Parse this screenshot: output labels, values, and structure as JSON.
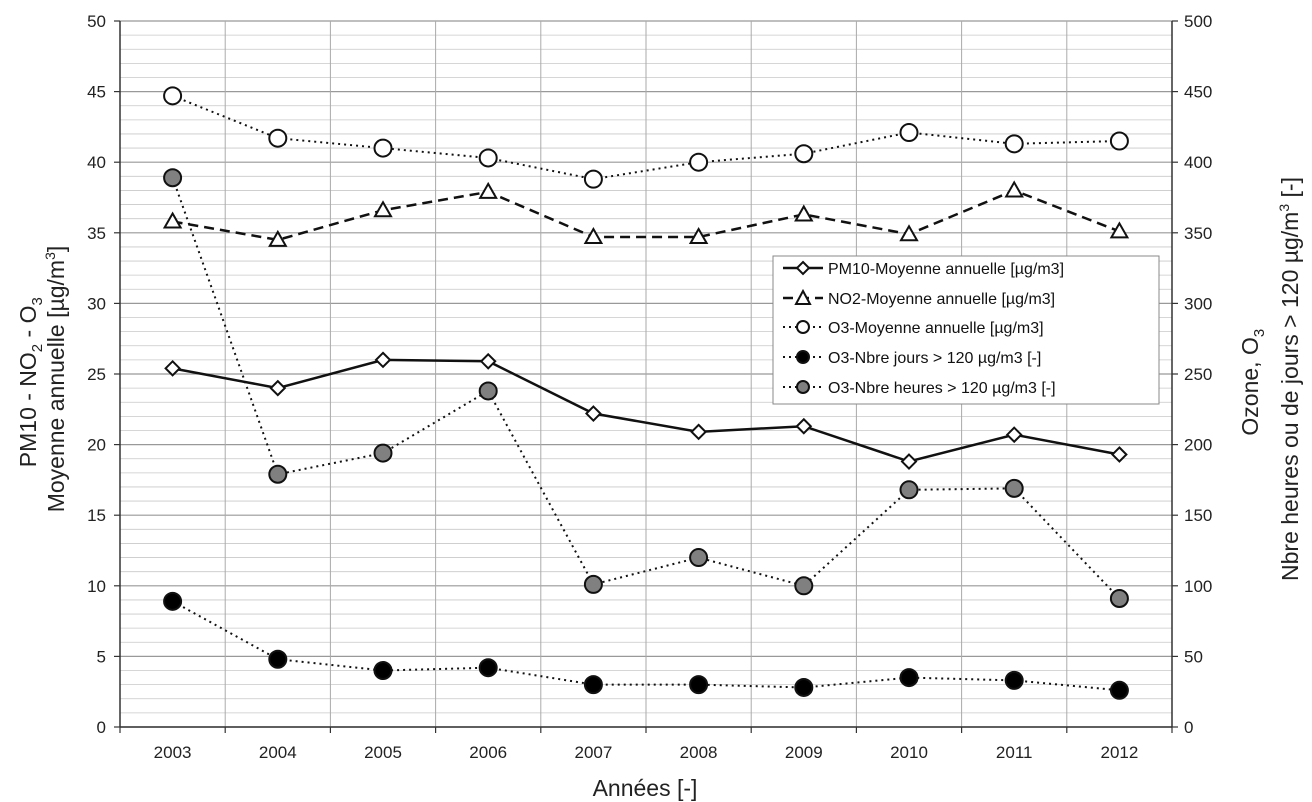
{
  "chart_data": {
    "type": "line",
    "x": [
      "2003",
      "2004",
      "2005",
      "2006",
      "2007",
      "2008",
      "2009",
      "2010",
      "2011",
      "2012"
    ],
    "xlabel": "Années [-]",
    "ylabel_left": {
      "line1_prefix": "PM10 - NO",
      "line1_sub1": "2",
      "line1_mid": " - O",
      "line1_sub2": "3",
      "line2_prefix": "Moyenne annuelle [µg/m",
      "line2_sup": "3",
      "line2_suffix": "]"
    },
    "ylabel_right": {
      "line1_prefix": "Ozone, O",
      "line1_sub": "3",
      "line2_prefix": "Nbre heures ou de jours > 120 µg/m",
      "line2_sup": "3",
      "line2_suffix": " [-]"
    },
    "ylim_left": [
      0,
      50
    ],
    "ylim_right": [
      0,
      500
    ],
    "yticks_left": [
      "0",
      "5",
      "10",
      "15",
      "20",
      "25",
      "30",
      "35",
      "40",
      "45",
      "50"
    ],
    "yticks_right": [
      "0",
      "50",
      "100",
      "150",
      "200",
      "250",
      "300",
      "350",
      "400",
      "450",
      "500"
    ],
    "grid": true,
    "legend_position": "right-center",
    "series": [
      {
        "name": "PM10-Moyenne annuelle [µg/m3]",
        "axis": "left",
        "marker": "diamond",
        "line_style": "solid",
        "marker_fill": "#ffffff",
        "values": [
          25.4,
          24.0,
          26.0,
          25.9,
          22.2,
          20.9,
          21.3,
          18.8,
          20.7,
          19.3
        ]
      },
      {
        "name": "NO2-Moyenne annuelle [µg/m3]",
        "axis": "left",
        "marker": "triangle",
        "line_style": "dashed",
        "marker_fill": "#ffffff",
        "values": [
          35.8,
          34.5,
          36.6,
          37.9,
          34.7,
          34.7,
          36.3,
          34.9,
          38.0,
          35.1
        ]
      },
      {
        "name": "O3-Moyenne annuelle [µg/m3]",
        "axis": "left",
        "marker": "circle",
        "line_style": "dotted",
        "marker_fill": "#ffffff",
        "values": [
          44.7,
          41.7,
          41.0,
          40.3,
          38.8,
          40.0,
          40.6,
          42.1,
          41.3,
          41.5
        ]
      },
      {
        "name": "O3-Nbre jours > 120 µg/m3 [-]",
        "axis": "right",
        "marker": "circle",
        "line_style": "dotted",
        "marker_fill": "#000000",
        "values": [
          89,
          48,
          40,
          42,
          30,
          30,
          28,
          35,
          33,
          26
        ]
      },
      {
        "name": "O3-Nbre heures > 120 µg/m3 [-]",
        "axis": "right",
        "marker": "circle",
        "line_style": "dotted",
        "marker_fill": "#808080",
        "values": [
          389,
          179,
          194,
          238,
          101,
          120,
          100,
          168,
          169,
          91
        ]
      }
    ]
  }
}
